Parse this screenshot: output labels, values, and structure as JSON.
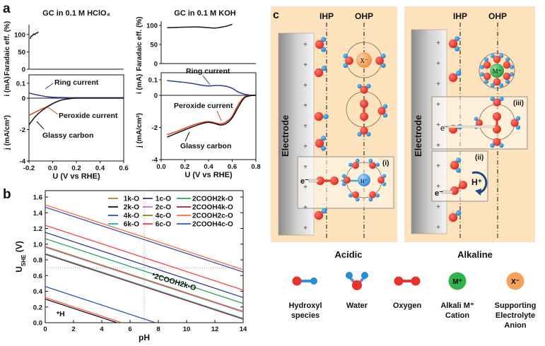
{
  "panel_labels": {
    "a": "a",
    "b": "b",
    "c": "c"
  },
  "chart_data": [
    {
      "type": "line",
      "panel": "a",
      "title": "GC in 0.1 M HClO₄",
      "xlabel": "U (V vs RHE)",
      "xlim": [
        -0.2,
        0.6
      ],
      "xticks": [
        "-0.2",
        "0.0",
        "0.2",
        "0.4",
        "0.6"
      ],
      "subplots": {
        "faradaic": {
          "ylabel": "Faradaic eff. (%)",
          "ylim": [
            0,
            110
          ],
          "yticks": [
            "0",
            "50",
            "100"
          ],
          "series": [
            {
              "color": "#111111",
              "x": [
                -0.19,
                -0.18,
                -0.17,
                -0.16,
                -0.15,
                -0.14,
                -0.13,
                -0.12
              ],
              "y": [
                88,
                96,
                97,
                102,
                100,
                104,
                105,
                108
              ]
            }
          ]
        },
        "ring": {
          "ylabel": "i (mA)",
          "yticks": [
            "0.1",
            "0"
          ],
          "series": [
            {
              "name": "Ring current",
              "color": "#2e3a9e",
              "x": [
                -0.2,
                -0.15,
                -0.1,
                -0.05,
                0.0,
                0.1,
                0.2,
                0.4,
                0.6
              ],
              "y": [
                0.035,
                0.025,
                0.017,
                0.01,
                0.006,
                0.004,
                0.003,
                0.003,
                0.003
              ]
            }
          ]
        },
        "disk": {
          "ylabel": "j (mA/cm²)",
          "ylim": [
            -4,
            0
          ],
          "yticks": [
            "-2",
            "-4"
          ],
          "series": [
            {
              "name": "Peroxide current",
              "color": "#f03c24",
              "x": [
                -0.2,
                -0.15,
                -0.1,
                -0.05,
                0.0
              ],
              "y": [
                -1.1,
                -0.9,
                -0.72,
                -0.55,
                -0.35
              ]
            },
            {
              "name": "Glassy carbon",
              "color": "#111111",
              "x": [
                -0.2,
                -0.15,
                -0.1,
                -0.05,
                0.0,
                0.05,
                0.1,
                0.15,
                0.2,
                0.4,
                0.6
              ],
              "y": [
                -1.7,
                -1.2,
                -0.85,
                -0.58,
                -0.35,
                -0.18,
                -0.08,
                -0.03,
                0,
                0,
                0
              ]
            }
          ]
        }
      },
      "annotations": [
        "Ring current",
        "Peroxide current",
        "Glassy carbon"
      ]
    },
    {
      "type": "line",
      "panel": "a",
      "title": "GC in 0.1 M KOH",
      "xlabel": "U (V vs RHE)",
      "xlim": [
        0.0,
        0.8
      ],
      "xticks": [
        "0.0",
        "0.2",
        "0.4",
        "0.6",
        "0.8"
      ],
      "subplots": {
        "faradaic": {
          "ylabel": "Faradaic eff. (%)",
          "ylim": [
            0,
            110
          ],
          "yticks": [
            "0",
            "50",
            "100"
          ],
          "series": [
            {
              "color": "#111111",
              "x": [
                0.05,
                0.15,
                0.3,
                0.4,
                0.45,
                0.5,
                0.55,
                0.6
              ],
              "y": [
                94,
                95,
                96,
                94,
                93,
                95,
                98,
                103
              ]
            }
          ]
        },
        "ring": {
          "ylabel": "i (mA)",
          "yticks": [
            "0.1",
            "0"
          ],
          "series": [
            {
              "name": "Ring current",
              "color": "#2e3a9e",
              "x": [
                0.05,
                0.15,
                0.25,
                0.35,
                0.4,
                0.45,
                0.5,
                0.55,
                0.6,
                0.65,
                0.7,
                0.75,
                0.8
              ],
              "y": [
                0.095,
                0.087,
                0.078,
                0.064,
                0.06,
                0.063,
                0.063,
                0.058,
                0.045,
                0.022,
                0.008,
                0.002,
                0.001
              ]
            }
          ]
        },
        "disk": {
          "ylabel": "j (mA/cm²)",
          "ylim": [
            -4,
            0
          ],
          "yticks": [
            "-2",
            "-4"
          ],
          "series": [
            {
              "name": "Peroxide current",
              "color": "#f03c24",
              "x": [
                0.05,
                0.15,
                0.25,
                0.35,
                0.4,
                0.45,
                0.5,
                0.55,
                0.6,
                0.65,
                0.7,
                0.75,
                0.8
              ],
              "y": [
                -2.45,
                -2.2,
                -1.9,
                -1.68,
                -1.63,
                -1.7,
                -1.78,
                -1.65,
                -1.3,
                -0.6,
                -0.12,
                -0.02,
                0
              ]
            },
            {
              "name": "Glassy carbon",
              "color": "#111111",
              "x": [
                0.05,
                0.15,
                0.25,
                0.35,
                0.4,
                0.45,
                0.5,
                0.55,
                0.6,
                0.65,
                0.7,
                0.75,
                0.8
              ],
              "y": [
                -2.6,
                -2.3,
                -2.0,
                -1.75,
                -1.68,
                -1.75,
                -1.85,
                -1.75,
                -1.4,
                -0.75,
                -0.18,
                -0.03,
                0
              ]
            }
          ]
        }
      },
      "annotations": [
        "Ring current",
        "Peroxide current",
        "Glassy carbon"
      ]
    },
    {
      "type": "line",
      "panel": "b",
      "xlabel": "pH",
      "ylabel": "U",
      "ylabel_sub": "SHE",
      "ylabel_unit": " (V)",
      "xlim": [
        0,
        14
      ],
      "ylim": [
        0,
        1.6
      ],
      "xticks": [
        "0",
        "2",
        "4",
        "6",
        "8",
        "10",
        "12",
        "14"
      ],
      "yticks": [
        "0.0",
        "0.2",
        "0.4",
        "0.6",
        "0.8",
        "1.0",
        "1.2",
        "1.4",
        "1.6"
      ],
      "reference_lines": {
        "pH": 7,
        "U": 0.7
      },
      "legend_position": "top-right",
      "series": [
        {
          "name": "1k-O",
          "color": "#f4603c",
          "x": [
            0,
            5.42
          ],
          "y": [
            0.32,
            0
          ]
        },
        {
          "name": "2k-O",
          "color": "#111111",
          "x": [
            0,
            5.08
          ],
          "y": [
            0.3,
            0
          ]
        },
        {
          "name": "4k-O",
          "color": "#3a4fb8",
          "x": [
            0,
            7.8
          ],
          "y": [
            0.46,
            0
          ]
        },
        {
          "name": "6k-O",
          "color": "#17b3b0",
          "x": [
            0,
            14
          ],
          "y": [
            0.88,
            0.055
          ]
        },
        {
          "name": "1c-O",
          "color": "#2b3a9a",
          "x": [
            0,
            14
          ],
          "y": [
            1.15,
            0.32
          ]
        },
        {
          "name": "2c-O",
          "color": "#d46ad0",
          "x": [
            0,
            14
          ],
          "y": [
            0.96,
            0.135
          ]
        },
        {
          "name": "4c-O",
          "color": "#8a8a1e",
          "x": [
            0,
            14
          ],
          "y": [
            0.97,
            0.145
          ]
        },
        {
          "name": "6c-O",
          "color": "#ff3b3b",
          "x": [
            0,
            14
          ],
          "y": [
            1.24,
            0.415
          ]
        },
        {
          "name": "2COOH2k-O",
          "color": "#22a85a",
          "x": [
            0,
            14
          ],
          "y": [
            1.07,
            0.245
          ]
        },
        {
          "name": "2COOH4k-O",
          "color": "#b0202a",
          "x": [
            0,
            14
          ],
          "y": [
            0.87,
            0.045
          ]
        },
        {
          "name": "2COOH2c-O",
          "color": "#ff6a3a",
          "x": [
            0,
            14
          ],
          "y": [
            1.5,
            0.675
          ]
        },
        {
          "name": "2COOH4c-O",
          "color": "#3a4fb8",
          "x": [
            0,
            14
          ],
          "y": [
            1.47,
            0.645
          ]
        }
      ],
      "annotations": {
        "green_label": "*2COOH2k-O",
        "region_label": "*H"
      }
    }
  ],
  "diagram": {
    "ihp": "IHP",
    "ohp": "OHP",
    "electrode": "Electrode",
    "acidic": "Acidic",
    "alkaline": "Alkaline",
    "anion": "X⁻",
    "cation": "M⁺",
    "proton": "H⁺",
    "electron": "e⁻",
    "box_i": "(i)",
    "box_ii": "(ii)",
    "box_iii": "(iii)",
    "colors": {
      "background": "#fde3bd",
      "oxygen": "#e8332a",
      "hydrogen": "#1f8fd8",
      "cation": "#2fb34a",
      "anion": "#f5a25d"
    },
    "legend": [
      {
        "icon": "hydroxyl",
        "lines": [
          "Hydroxyl",
          "species"
        ]
      },
      {
        "icon": "water",
        "lines": [
          "Water"
        ]
      },
      {
        "icon": "oxygen",
        "lines": [
          "Oxygen"
        ]
      },
      {
        "icon": "cation",
        "symbol": "M⁺",
        "lines": [
          "Alkali M⁺",
          "Cation"
        ]
      },
      {
        "icon": "anion",
        "symbol": "X⁻",
        "lines": [
          "Supporting",
          "Electrolyte",
          "Anion"
        ]
      }
    ]
  }
}
